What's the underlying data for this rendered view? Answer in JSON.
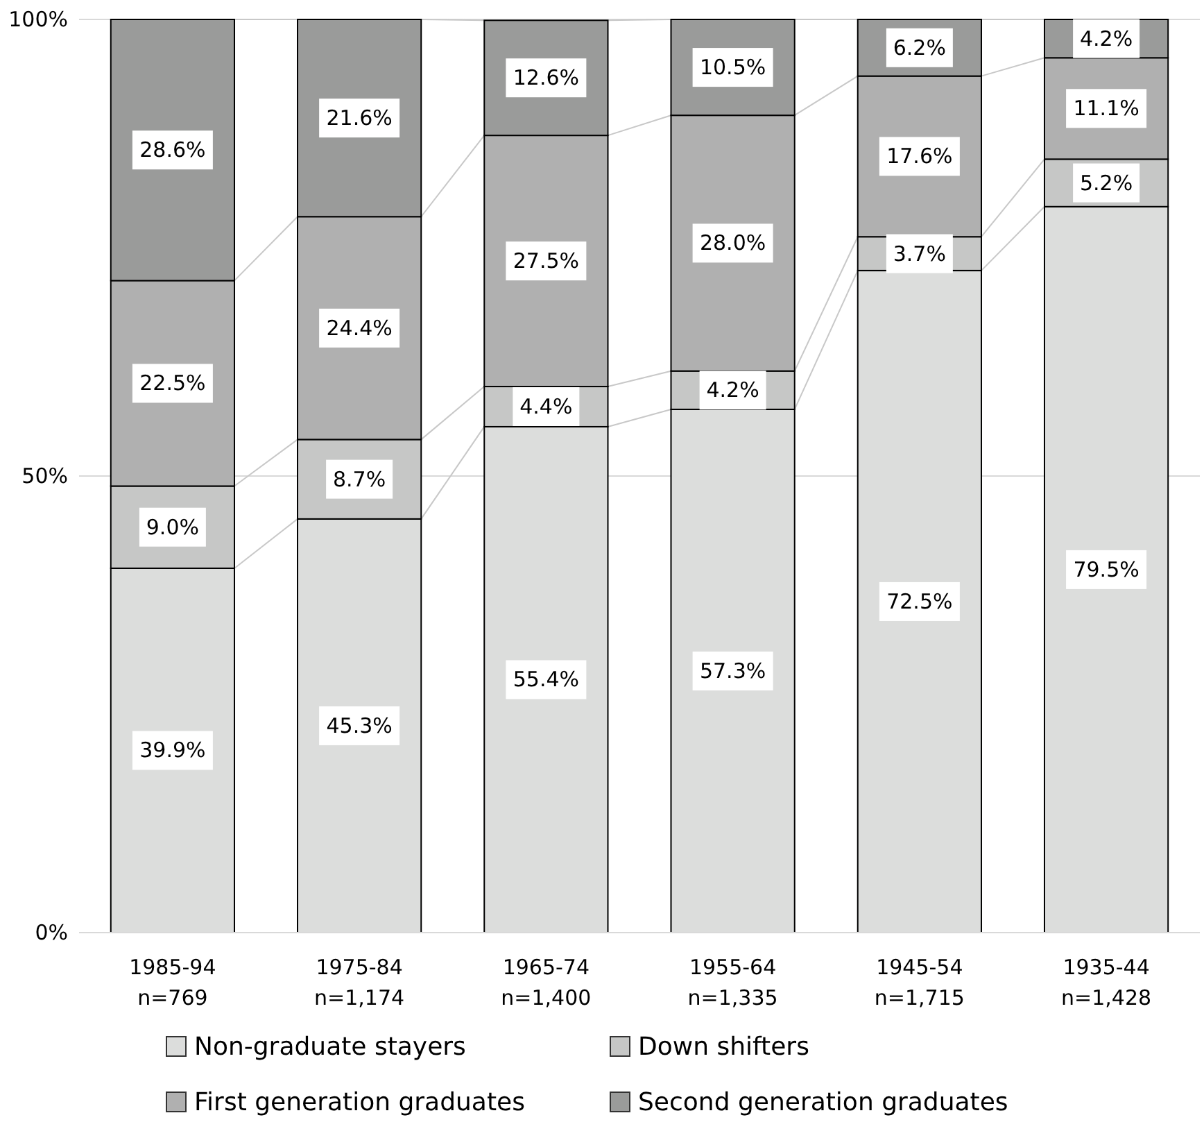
{
  "chart_data": {
    "type": "bar",
    "stacked": true,
    "categories": [
      "1985-94\nn=769",
      "1975-84\nn=1,174",
      "1965-74\nn=1,400",
      "1955-64\nn=1,335",
      "1945-54\nn=1,715",
      "1935-44\nn=1,428"
    ],
    "series": [
      {
        "name": "Non-graduate stayers",
        "color": "#dcdddc",
        "values": [
          39.9,
          45.3,
          55.4,
          57.3,
          72.5,
          79.5
        ],
        "value_labels": [
          "39.9%",
          "45.3%",
          "55.4%",
          "57.3%",
          "72.5%",
          "79.5%"
        ]
      },
      {
        "name": "Down shifters",
        "color": "#c6c7c6",
        "values": [
          9.0,
          8.7,
          4.4,
          4.2,
          3.7,
          5.2
        ],
        "value_labels": [
          "9.0%",
          "8.7%",
          "4.4%",
          "4.2%",
          "3.7%",
          "5.2%"
        ]
      },
      {
        "name": "First generation graduates",
        "color": "#b0b0b0",
        "values": [
          22.5,
          24.4,
          27.5,
          28.0,
          17.6,
          11.1
        ],
        "value_labels": [
          "22.5%",
          "24.4%",
          "27.5%",
          "28.0%",
          "17.6%",
          "11.1%"
        ]
      },
      {
        "name": "Second generation graduates",
        "color": "#9a9b9a",
        "values": [
          28.6,
          21.6,
          12.6,
          10.5,
          6.2,
          4.2
        ],
        "value_labels": [
          "28.6%",
          "21.6%",
          "12.6%",
          "10.5%",
          "6.2%",
          "4.2%"
        ]
      }
    ],
    "ylim": [
      0,
      100
    ],
    "yticks": [
      {
        "value": 0,
        "label": "0%"
      },
      {
        "value": 50,
        "label": "50%"
      },
      {
        "value": 100,
        "label": "100%"
      }
    ],
    "grid": "y",
    "legend": "bottom"
  }
}
